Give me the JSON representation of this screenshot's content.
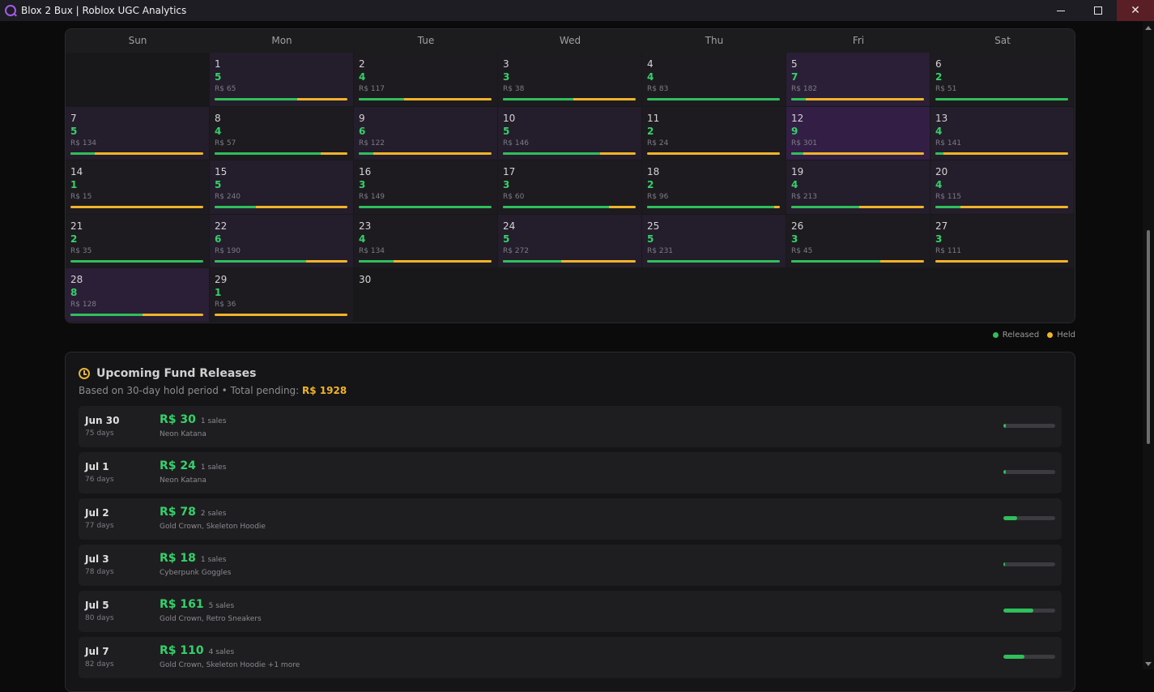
{
  "window": {
    "title": "Blox 2 Bux | Roblox UGC Analytics"
  },
  "calendar": {
    "weekdays": [
      "Sun",
      "Mon",
      "Tue",
      "Wed",
      "Thu",
      "Fri",
      "Sat"
    ],
    "leading_empty": 1,
    "days": [
      {
        "d": "1",
        "count": "5",
        "amt": "R$ 65",
        "released_pct": 62,
        "lvl": 1
      },
      {
        "d": "2",
        "count": "4",
        "amt": "R$ 117",
        "released_pct": 34,
        "lvl": 0
      },
      {
        "d": "3",
        "count": "3",
        "amt": "R$ 38",
        "released_pct": 53,
        "lvl": 0
      },
      {
        "d": "4",
        "count": "4",
        "amt": "R$ 83",
        "released_pct": 100,
        "lvl": 0
      },
      {
        "d": "5",
        "count": "7",
        "amt": "R$ 182",
        "released_pct": 11,
        "lvl": 2
      },
      {
        "d": "6",
        "count": "2",
        "amt": "R$ 51",
        "released_pct": 100,
        "lvl": 0
      },
      {
        "d": "7",
        "count": "5",
        "amt": "R$ 134",
        "released_pct": 18,
        "lvl": 1
      },
      {
        "d": "8",
        "count": "4",
        "amt": "R$ 57",
        "released_pct": 80,
        "lvl": 0
      },
      {
        "d": "9",
        "count": "6",
        "amt": "R$ 122",
        "released_pct": 11,
        "lvl": 1
      },
      {
        "d": "10",
        "count": "5",
        "amt": "R$ 146",
        "released_pct": 73,
        "lvl": 1
      },
      {
        "d": "11",
        "count": "2",
        "amt": "R$ 24",
        "released_pct": 0,
        "lvl": 0
      },
      {
        "d": "12",
        "count": "9",
        "amt": "R$ 301",
        "released_pct": 9,
        "lvl": 3
      },
      {
        "d": "13",
        "count": "4",
        "amt": "R$ 141",
        "released_pct": 6,
        "lvl": 1
      },
      {
        "d": "14",
        "count": "1",
        "amt": "R$ 15",
        "released_pct": 0,
        "lvl": 0
      },
      {
        "d": "15",
        "count": "5",
        "amt": "R$ 240",
        "released_pct": 31,
        "lvl": 1
      },
      {
        "d": "16",
        "count": "3",
        "amt": "R$ 149",
        "released_pct": 100,
        "lvl": 0
      },
      {
        "d": "17",
        "count": "3",
        "amt": "R$ 60",
        "released_pct": 80,
        "lvl": 0
      },
      {
        "d": "18",
        "count": "2",
        "amt": "R$ 96",
        "released_pct": 96,
        "lvl": 0
      },
      {
        "d": "19",
        "count": "4",
        "amt": "R$ 213",
        "released_pct": 51,
        "lvl": 1
      },
      {
        "d": "20",
        "count": "4",
        "amt": "R$ 115",
        "released_pct": 19,
        "lvl": 1
      },
      {
        "d": "21",
        "count": "2",
        "amt": "R$ 35",
        "released_pct": 100,
        "lvl": 0
      },
      {
        "d": "22",
        "count": "6",
        "amt": "R$ 190",
        "released_pct": 69,
        "lvl": 1
      },
      {
        "d": "23",
        "count": "4",
        "amt": "R$ 134",
        "released_pct": 26,
        "lvl": 0
      },
      {
        "d": "24",
        "count": "5",
        "amt": "R$ 272",
        "released_pct": 44,
        "lvl": 1
      },
      {
        "d": "25",
        "count": "5",
        "amt": "R$ 231",
        "released_pct": 100,
        "lvl": 1
      },
      {
        "d": "26",
        "count": "3",
        "amt": "R$ 45",
        "released_pct": 67,
        "lvl": 0
      },
      {
        "d": "27",
        "count": "3",
        "amt": "R$ 111",
        "released_pct": 0,
        "lvl": 0
      },
      {
        "d": "28",
        "count": "8",
        "amt": "R$ 128",
        "released_pct": 54,
        "lvl": 2
      },
      {
        "d": "29",
        "count": "1",
        "amt": "R$ 36",
        "released_pct": 0,
        "lvl": 0
      },
      {
        "d": "30",
        "count": "",
        "amt": "",
        "released_pct": null,
        "lvl": -1
      }
    ],
    "trailing_empty": 4
  },
  "legend": {
    "released": "Released",
    "held": "Held"
  },
  "colors": {
    "released": "#2fbf5b",
    "held": "#f0b429",
    "accent": "#a35ae6"
  },
  "releases": {
    "title": "Upcoming Fund Releases",
    "subtitle_prefix": "Based on 30-day hold period • Total pending: ",
    "total_pending": "R$ 1928",
    "items": [
      {
        "date": "Jun 30",
        "days": "75 days",
        "amount": "R$ 30",
        "sales": "1 sales",
        "items": "Neon Katana",
        "progress": 5
      },
      {
        "date": "Jul 1",
        "days": "76 days",
        "amount": "R$ 24",
        "sales": "1 sales",
        "items": "Neon Katana",
        "progress": 4
      },
      {
        "date": "Jul 2",
        "days": "77 days",
        "amount": "R$ 78",
        "sales": "2 sales",
        "items": "Gold Crown, Skeleton Hoodie",
        "progress": 27
      },
      {
        "date": "Jul 3",
        "days": "78 days",
        "amount": "R$ 18",
        "sales": "1 sales",
        "items": "Cyberpunk Goggles",
        "progress": 3
      },
      {
        "date": "Jul 5",
        "days": "80 days",
        "amount": "R$ 161",
        "sales": "5 sales",
        "items": "Gold Crown, Retro Sneakers",
        "progress": 58
      },
      {
        "date": "Jul 7",
        "days": "82 days",
        "amount": "R$ 110",
        "sales": "4 sales",
        "items": "Gold Crown, Skeleton Hoodie +1 more",
        "progress": 40
      }
    ]
  }
}
